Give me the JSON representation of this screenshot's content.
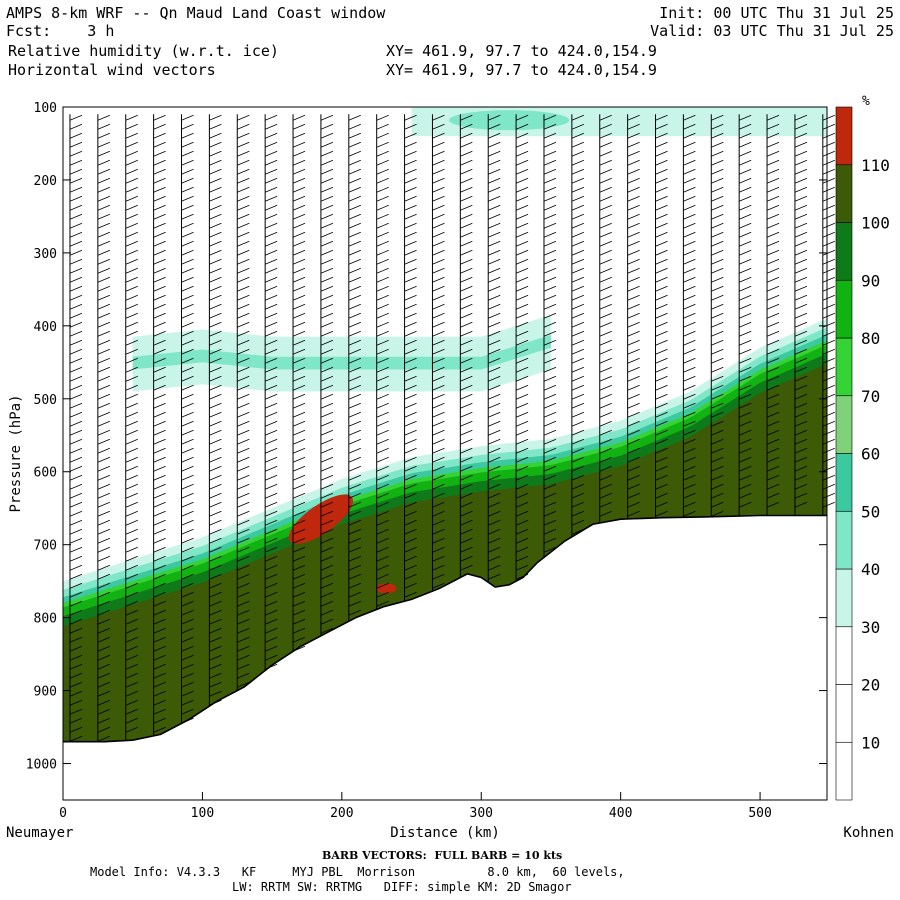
{
  "header": {
    "title": "AMPS 8-km WRF -- Qn Maud Land Coast window",
    "forecast": "Fcst:    3 h",
    "field1": "Relative humidity (w.r.t. ice)",
    "field2": "Horizontal wind vectors",
    "init": "Init: 00 UTC Thu 31 Jul 25",
    "valid": "Valid: 03 UTC Thu 31 Jul 25",
    "xy1": "XY= 461.9, 97.7 to 424.0,154.9",
    "xy2": "XY= 461.9, 97.7 to 424.0,154.9"
  },
  "footer": {
    "barb": "BARB VECTORS:  FULL BARB = 10 kts",
    "model1": "Model Info: V4.3.3   KF     MYJ PBL  Morrison          8.0 km,  60 levels,",
    "model2": "LW: RRTM SW: RRTMG   DIFF: simple KM: 2D Smagor"
  },
  "chart_data": {
    "type": "heatmap",
    "title": "Relative humidity (w.r.t. ice)",
    "xlabel": "Distance (km)",
    "ylabel": "Pressure (hPa)",
    "x_ticks": [
      0,
      100,
      200,
      300,
      400,
      500
    ],
    "y_ticks": [
      100,
      200,
      300,
      400,
      500,
      600,
      700,
      800,
      900,
      1000
    ],
    "xlim": [
      0,
      548
    ],
    "ylim": [
      100,
      1050
    ],
    "left_endpoint": "Neumayer",
    "right_endpoint": "Kohnen",
    "colorbar": {
      "unit": "%",
      "ticks": [
        10,
        20,
        30,
        40,
        50,
        60,
        70,
        80,
        90,
        100,
        110
      ],
      "levels": [
        {
          "from": 0,
          "to": 10,
          "color": "#ffffff"
        },
        {
          "from": 10,
          "to": 20,
          "color": "#ffffff"
        },
        {
          "from": 20,
          "to": 30,
          "color": "#ffffff"
        },
        {
          "from": 30,
          "to": 40,
          "color": "#c8f5e8"
        },
        {
          "from": 40,
          "to": 50,
          "color": "#7fe6c8"
        },
        {
          "from": 50,
          "to": 60,
          "color": "#3cc9a0"
        },
        {
          "from": 60,
          "to": 70,
          "color": "#7fd27a"
        },
        {
          "from": 70,
          "to": 80,
          "color": "#35d335"
        },
        {
          "from": 80,
          "to": 90,
          "color": "#12b212"
        },
        {
          "from": 90,
          "to": 100,
          "color": "#0e7a1a"
        },
        {
          "from": 100,
          "to": 110,
          "color": "#3d5a06"
        },
        {
          "from": 110,
          "to": 120,
          "color": "#c0280e"
        }
      ]
    },
    "terrain_profile": {
      "distance_km": [
        0,
        30,
        50,
        70,
        90,
        110,
        130,
        150,
        170,
        190,
        210,
        230,
        250,
        270,
        290,
        300,
        310,
        320,
        330,
        340,
        360,
        380,
        400,
        430,
        460,
        500,
        548
      ],
      "surface_pressure_hPa": [
        970,
        970,
        968,
        960,
        940,
        915,
        895,
        865,
        840,
        820,
        800,
        785,
        775,
        760,
        740,
        745,
        758,
        755,
        745,
        725,
        695,
        672,
        665,
        663,
        662,
        660,
        660
      ]
    },
    "moist_layer_top_hPa": {
      "distance_km": [
        0,
        50,
        100,
        150,
        200,
        250,
        300,
        350,
        400,
        450,
        500,
        548
      ],
      "pressure_hPa": [
        790,
        760,
        730,
        690,
        650,
        620,
        605,
        595,
        570,
        530,
        470,
        430
      ]
    },
    "upper_moist_band_hPa": {
      "distance_km": [
        50,
        100,
        150,
        200,
        250,
        300,
        350
      ],
      "pressure_hPa": [
        450,
        440,
        450,
        450,
        450,
        450,
        420
      ]
    },
    "wind_barbs": {
      "column_spacing_km": 20,
      "full_barb_kts": 10
    }
  }
}
